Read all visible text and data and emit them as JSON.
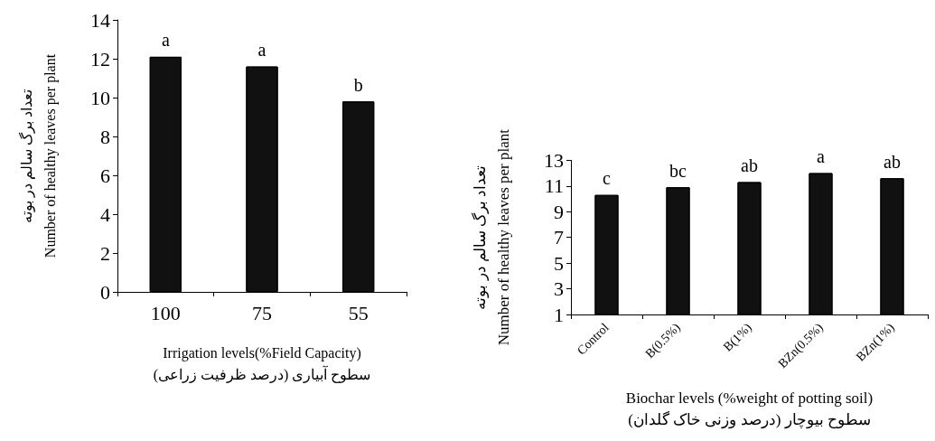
{
  "chart_data": [
    {
      "type": "bar",
      "xlabel": "Irrigation levels(%Field Capacity)\nسطوح آبیاری (درصد ظرفیت زراعی)",
      "ylabel": "تعداد برگ سالم در بوته\nNumber of healthy leaves per plant",
      "categories": [
        "100",
        "75",
        "55"
      ],
      "values": [
        12.1,
        11.6,
        9.8
      ],
      "color": "#111111",
      "ylim": [
        0,
        14
      ],
      "yticks": [
        0,
        2,
        4,
        6,
        8,
        10,
        12,
        14
      ],
      "grid": false,
      "annotations": [
        {
          "text": "a",
          "x": "100",
          "y": 12.1
        },
        {
          "text": "a",
          "x": "75",
          "y": 11.6
        },
        {
          "text": "b",
          "x": "55",
          "y": 9.8
        }
      ]
    },
    {
      "type": "bar",
      "xlabel": "Biochar levels (%weight of potting soil)\nسطوح بیوچار (درصد وزنی خاک گلدان)",
      "ylabel": "تعداد برگ سالم در بوته\nNumber of healthy leaves per plant",
      "categories": [
        "Control",
        "B(0.5%)",
        "B(1%)",
        "BZn(0.5%)",
        "BZn(1%)"
      ],
      "values": [
        10.3,
        10.9,
        11.3,
        12.0,
        11.6
      ],
      "color": "#111111",
      "ylim": [
        1,
        13
      ],
      "yticks": [
        1,
        3,
        5,
        7,
        9,
        11,
        13
      ],
      "grid": false,
      "annotations": [
        {
          "text": "c",
          "x": "Control",
          "y": 10.3
        },
        {
          "text": "bc",
          "x": "B(0.5%)",
          "y": 10.9
        },
        {
          "text": "ab",
          "x": "B(1%)",
          "y": 11.3
        },
        {
          "text": "a",
          "x": "BZn(0.5%)",
          "y": 12.0
        },
        {
          "text": "ab",
          "x": "BZn(1%)",
          "y": 11.6
        }
      ]
    }
  ]
}
